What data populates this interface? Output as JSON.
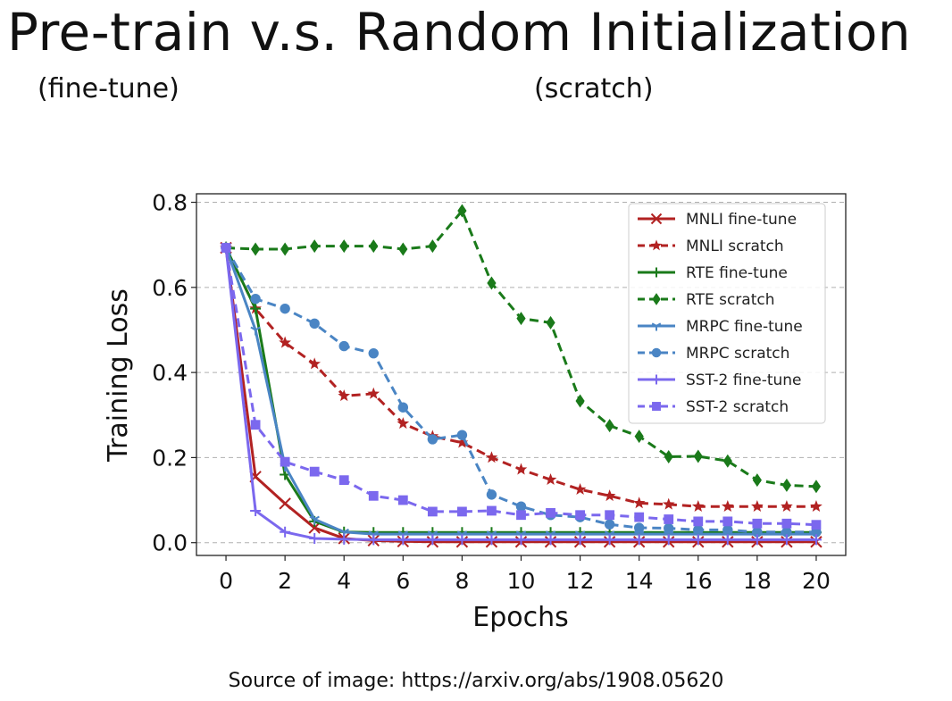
{
  "slide": {
    "title": "Pre-train v.s. Random Initialization",
    "subtitle_left": "(fine-tune)",
    "subtitle_right": "(scratch)",
    "source": "Source of image: https://arxiv.org/abs/1908.05620"
  },
  "chart_data": {
    "type": "line",
    "title": "",
    "xlabel": "Epochs",
    "ylabel": "Training Loss",
    "xlim": [
      -1,
      21
    ],
    "ylim": [
      -0.03,
      0.82
    ],
    "x_ticks": [
      0,
      2,
      4,
      6,
      8,
      10,
      12,
      14,
      16,
      18,
      20
    ],
    "y_ticks": [
      0.0,
      0.2,
      0.4,
      0.6,
      0.8
    ],
    "x_tick_labels": [
      "0",
      "2",
      "4",
      "6",
      "8",
      "10",
      "12",
      "14",
      "16",
      "18",
      "20"
    ],
    "y_tick_labels": [
      "0.0",
      "0.2",
      "0.4",
      "0.6",
      "0.8"
    ],
    "grid": "horizontal dashed",
    "legend_position": "top-right",
    "series": [
      {
        "name": "MNLI fine-tune",
        "color": "#b22222",
        "dash": "solid",
        "marker": "x",
        "values": [
          0.693,
          0.155,
          0.092,
          0.035,
          0.01,
          0.005,
          0.003,
          0.002,
          0.002,
          0.002,
          0.002,
          0.002,
          0.002,
          0.002,
          0.002,
          0.002,
          0.002,
          0.002,
          0.002,
          0.002,
          0.002
        ]
      },
      {
        "name": "MNLI scratch",
        "color": "#b22222",
        "dash": "dashed",
        "marker": "star",
        "values": [
          0.693,
          0.55,
          0.47,
          0.42,
          0.345,
          0.35,
          0.28,
          0.25,
          0.235,
          0.2,
          0.172,
          0.148,
          0.125,
          0.11,
          0.093,
          0.09,
          0.085,
          0.085,
          0.085,
          0.085,
          0.085
        ]
      },
      {
        "name": "RTE fine-tune",
        "color": "#1a7a1a",
        "dash": "solid",
        "marker": "plus",
        "values": [
          0.693,
          0.55,
          0.16,
          0.05,
          0.025,
          0.024,
          0.024,
          0.024,
          0.024,
          0.024,
          0.024,
          0.024,
          0.024,
          0.024,
          0.024,
          0.024,
          0.024,
          0.024,
          0.024,
          0.024,
          0.024
        ]
      },
      {
        "name": "RTE scratch",
        "color": "#1a7a1a",
        "dash": "dashed",
        "marker": "diamond",
        "values": [
          0.693,
          0.69,
          0.69,
          0.697,
          0.697,
          0.697,
          0.69,
          0.697,
          0.78,
          0.61,
          0.527,
          0.517,
          0.333,
          0.275,
          0.25,
          0.202,
          0.203,
          0.192,
          0.147,
          0.135,
          0.132
        ]
      },
      {
        "name": "MRPC fine-tune",
        "color": "#4a85c4",
        "dash": "solid",
        "marker": "tri",
        "values": [
          0.693,
          0.5,
          0.18,
          0.055,
          0.025,
          0.02,
          0.02,
          0.02,
          0.02,
          0.02,
          0.02,
          0.02,
          0.02,
          0.02,
          0.02,
          0.02,
          0.02,
          0.02,
          0.02,
          0.02,
          0.02
        ]
      },
      {
        "name": "MRPC scratch",
        "color": "#4a85c4",
        "dash": "dashed",
        "marker": "circle",
        "values": [
          0.693,
          0.573,
          0.55,
          0.515,
          0.462,
          0.445,
          0.318,
          0.243,
          0.253,
          0.113,
          0.085,
          0.065,
          0.06,
          0.043,
          0.035,
          0.034,
          0.03,
          0.03,
          0.025,
          0.025,
          0.025
        ]
      },
      {
        "name": "SST-2 fine-tune",
        "color": "#7b68ee",
        "dash": "solid",
        "marker": "plus",
        "values": [
          0.693,
          0.075,
          0.025,
          0.01,
          0.008,
          0.007,
          0.007,
          0.007,
          0.007,
          0.007,
          0.007,
          0.007,
          0.007,
          0.007,
          0.007,
          0.007,
          0.007,
          0.007,
          0.007,
          0.007,
          0.007
        ]
      },
      {
        "name": "SST-2 scratch",
        "color": "#7b68ee",
        "dash": "dashed",
        "marker": "square",
        "values": [
          0.693,
          0.277,
          0.19,
          0.167,
          0.147,
          0.11,
          0.1,
          0.073,
          0.073,
          0.075,
          0.065,
          0.07,
          0.065,
          0.065,
          0.06,
          0.055,
          0.05,
          0.05,
          0.045,
          0.045,
          0.042
        ]
      }
    ]
  }
}
